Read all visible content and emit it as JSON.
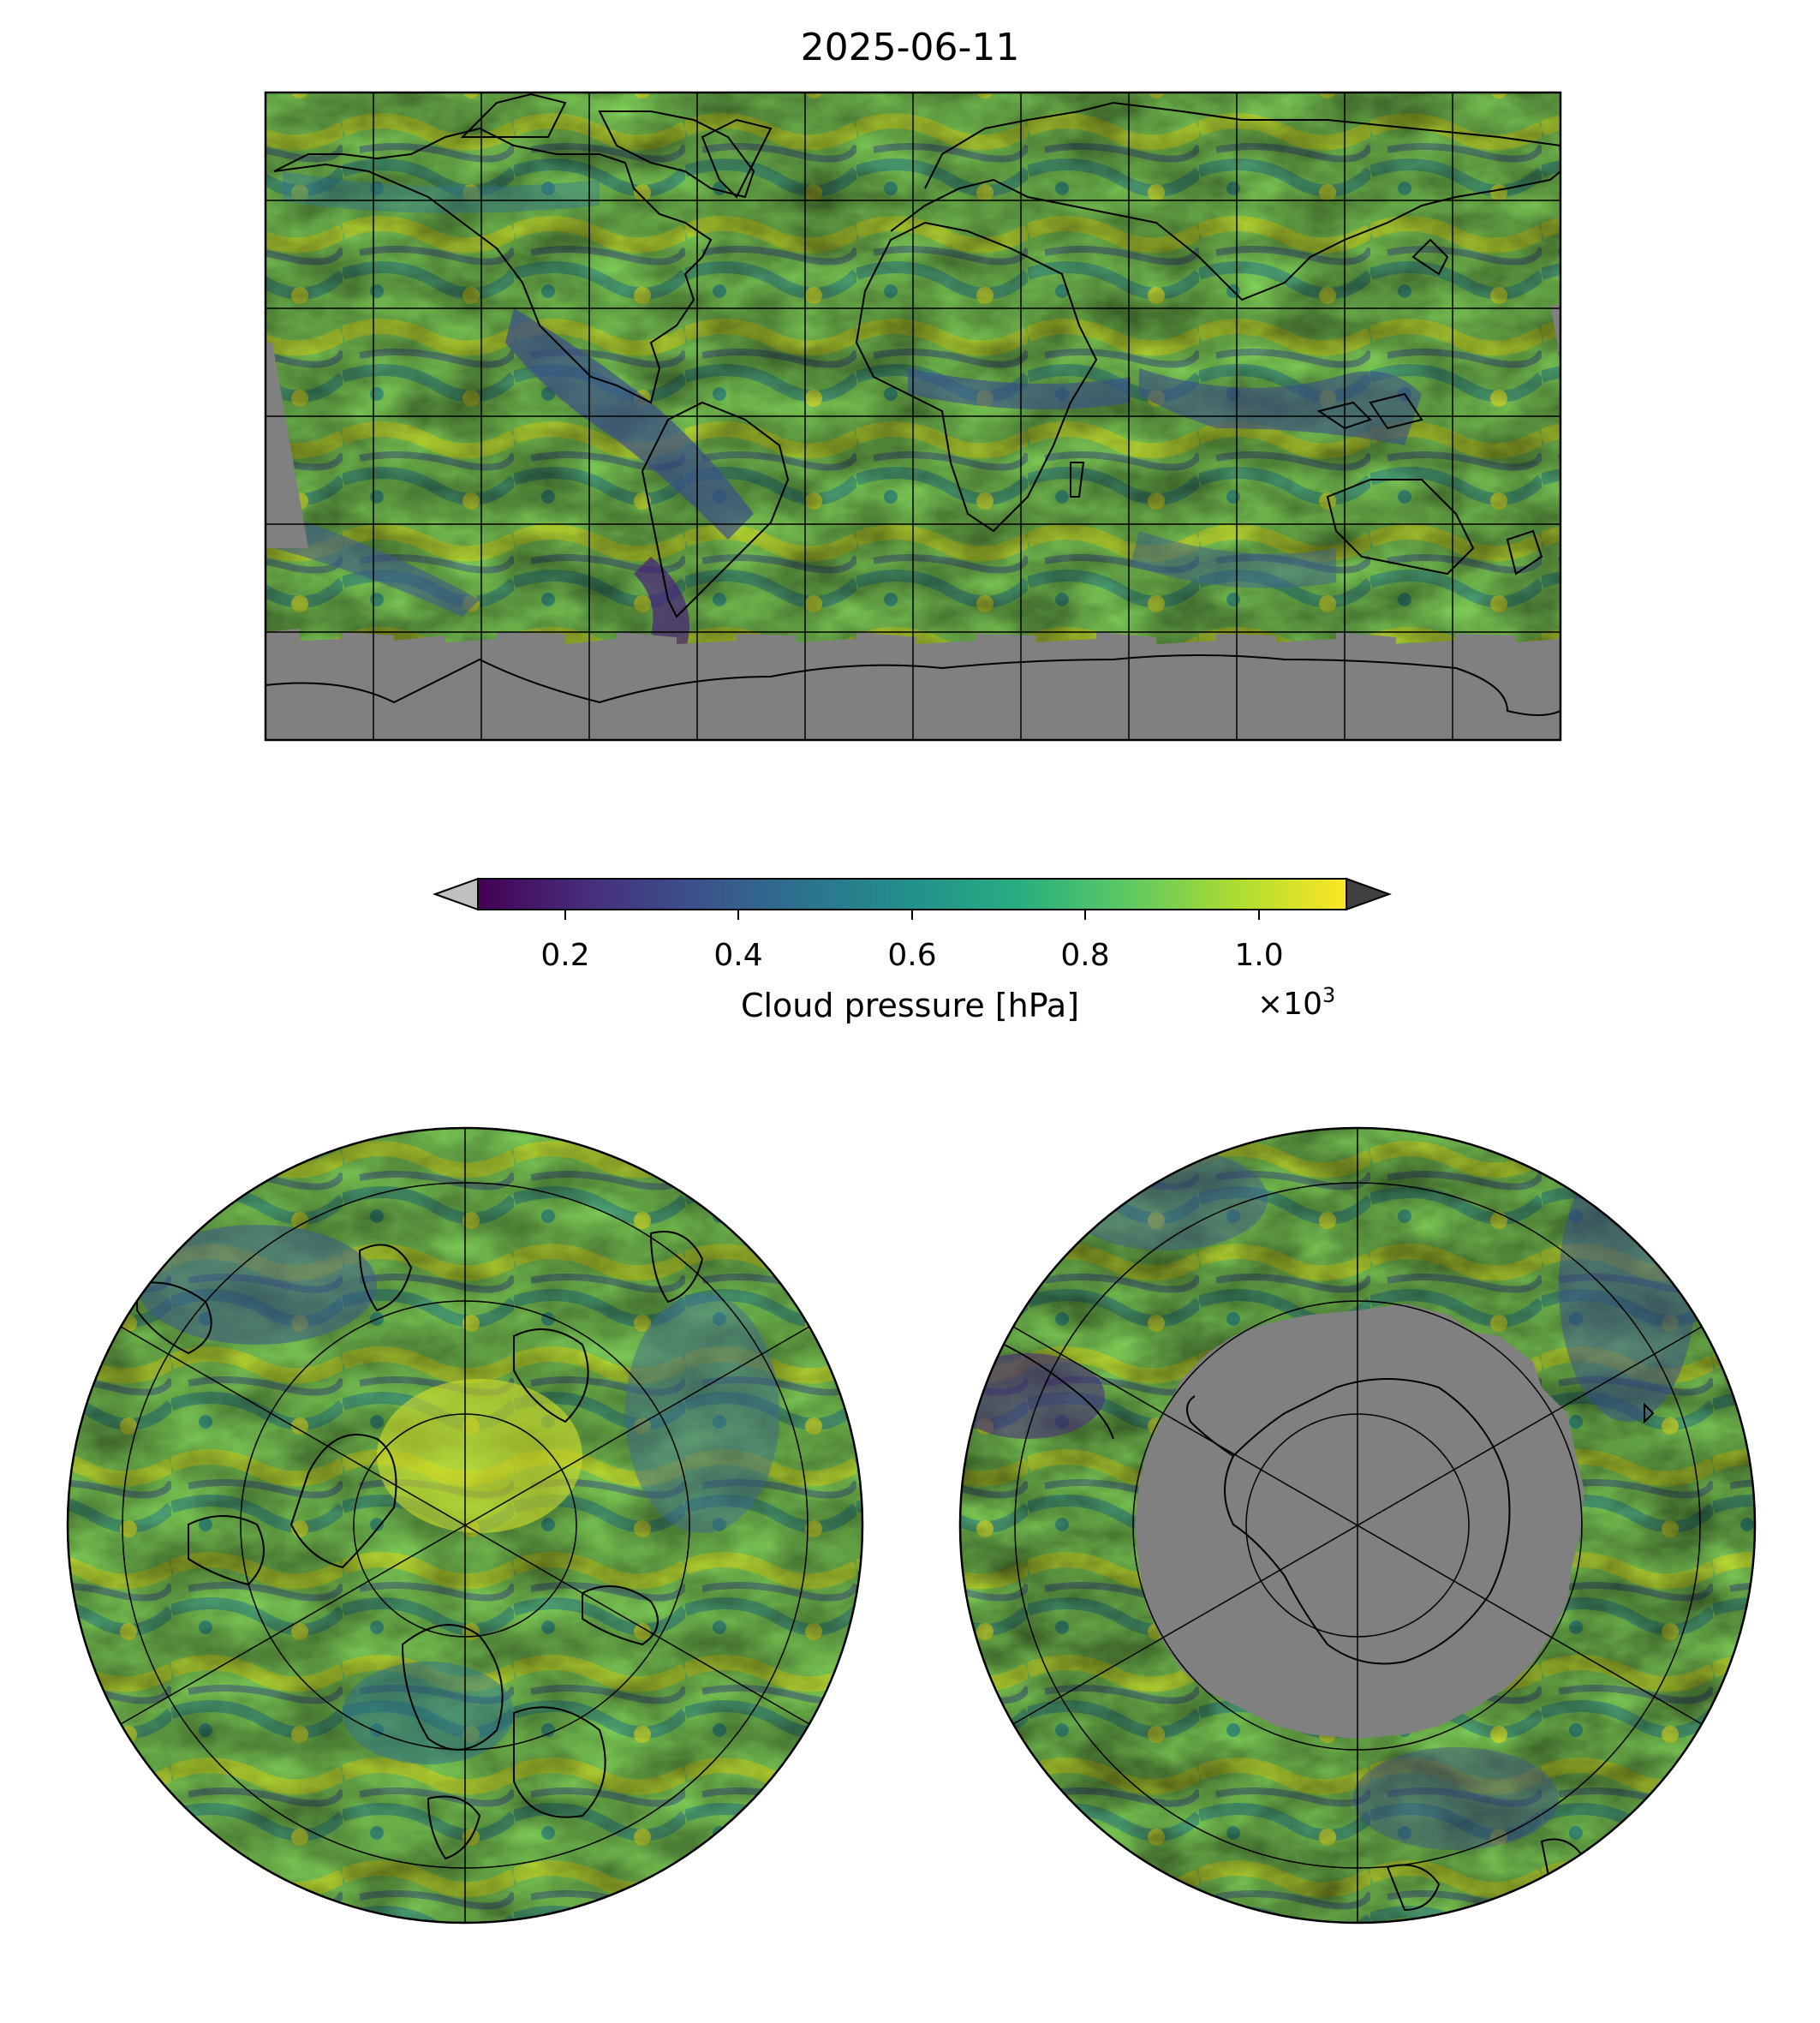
{
  "title": "2025-06-11",
  "colorbar": {
    "label": "Cloud pressure [hPa]",
    "ticks": [
      "0.2",
      "0.4",
      "0.6",
      "0.8",
      "1.0"
    ],
    "multiplier_base": "×10",
    "multiplier_exp": "3",
    "colormap": "viridis",
    "range": [
      0.1,
      1.1
    ],
    "extend": "both",
    "under_color": "#c0c0c0",
    "over_color": "#404040",
    "colors": [
      "#440154",
      "#472d7b",
      "#3b528b",
      "#2c728e",
      "#21918c",
      "#28ae80",
      "#5ec962",
      "#addc30",
      "#fde725"
    ]
  },
  "maps": {
    "global": {
      "projection": "equirectangular",
      "no_data_color": "#808080"
    },
    "north_polar": {
      "projection": "north-polar-stereographic",
      "no_data_color": "#808080"
    },
    "south_polar": {
      "projection": "south-polar-stereographic",
      "no_data_color": "#808080"
    }
  }
}
